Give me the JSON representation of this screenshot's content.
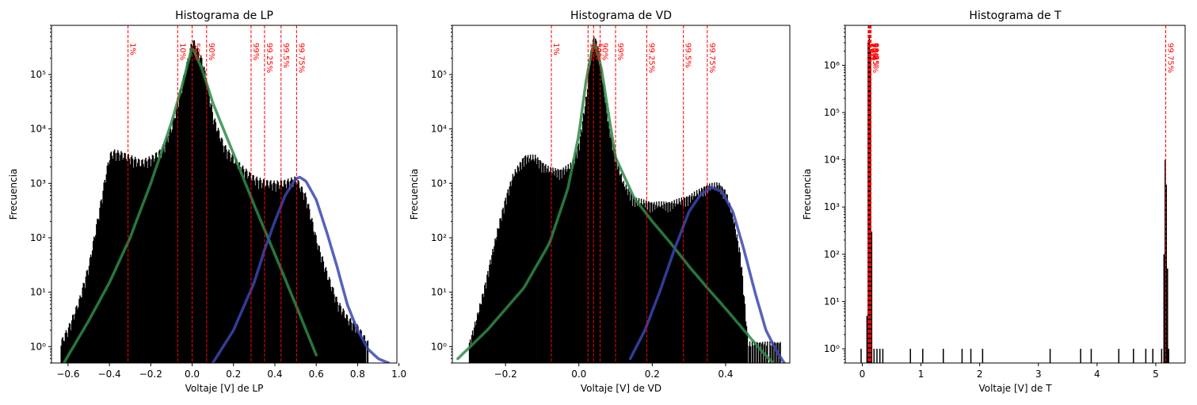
{
  "chart_data": [
    {
      "type": "histogram",
      "title": "Histograma de LP",
      "xlabel": "Voltaje [V] de LP",
      "ylabel": "Frecuencia",
      "yscale": "log",
      "xlim": [
        -0.68,
        0.99
      ],
      "ylim": [
        0.5,
        800000
      ],
      "xticks": [
        -0.6,
        -0.4,
        -0.2,
        0.0,
        0.2,
        0.4,
        0.6,
        0.8,
        1.0
      ],
      "xtick_labels": [
        "−0.6",
        "−0.4",
        "−0.2",
        "0.0",
        "0.2",
        "0.4",
        "0.6",
        "0.8",
        "1.0"
      ],
      "yticks": [
        1,
        10,
        100,
        1000,
        10000,
        100000
      ],
      "ytick_labels": [
        "10⁰",
        "10¹",
        "10²",
        "10³",
        "10⁴",
        "10⁵"
      ],
      "histogram": {
        "color": "#000000",
        "x": [
          -0.64,
          -0.6,
          -0.55,
          -0.5,
          -0.45,
          -0.42,
          -0.4,
          -0.38,
          -0.35,
          -0.3,
          -0.25,
          -0.2,
          -0.15,
          -0.1,
          -0.05,
          0.0,
          0.05,
          0.1,
          0.15,
          0.2,
          0.25,
          0.3,
          0.35,
          0.4,
          0.45,
          0.5,
          0.55,
          0.6,
          0.65,
          0.7,
          0.75,
          0.8,
          0.85
        ],
        "counts": [
          1,
          2,
          6,
          30,
          300,
          1300,
          3000,
          3400,
          3200,
          2700,
          2200,
          2600,
          3600,
          10000,
          60000,
          400000,
          150000,
          15000,
          4500,
          2500,
          1600,
          1100,
          950,
          900,
          950,
          1100,
          500,
          80,
          20,
          6,
          3,
          2,
          1
        ]
      },
      "series": [
        {
          "color": "#2e8b47",
          "x": [
            -0.62,
            -0.5,
            -0.4,
            -0.3,
            -0.2,
            -0.1,
            -0.05,
            0.0,
            0.05,
            0.1,
            0.2,
            0.3,
            0.4,
            0.5,
            0.6
          ],
          "y": [
            0.5,
            3,
            15,
            100,
            1000,
            13000,
            60000,
            320000,
            120000,
            30000,
            3500,
            400,
            50,
            6,
            0.7
          ]
        },
        {
          "color": "#3a46b0",
          "x": [
            0.1,
            0.2,
            0.3,
            0.35,
            0.4,
            0.45,
            0.5,
            0.52,
            0.55,
            0.6,
            0.65,
            0.7,
            0.75,
            0.8,
            0.85,
            0.9,
            0.95
          ],
          "y": [
            0.5,
            2,
            15,
            60,
            200,
            600,
            1200,
            1300,
            1100,
            500,
            130,
            30,
            6,
            2,
            0.9,
            0.6,
            0.5
          ]
        }
      ],
      "percentiles": [
        {
          "x": -0.31,
          "label": "1%"
        },
        {
          "x": -0.07,
          "label": "10%"
        },
        {
          "x": 0.0,
          "label": "50%"
        },
        {
          "x": 0.07,
          "label": "90%"
        },
        {
          "x": 0.285,
          "label": "99%"
        },
        {
          "x": 0.35,
          "label": "99.25%"
        },
        {
          "x": 0.43,
          "label": "99.5%"
        },
        {
          "x": 0.505,
          "label": "99.75%"
        }
      ]
    },
    {
      "type": "histogram",
      "title": "Histograma de VD",
      "xlabel": "Voltaje [V] de VD",
      "ylabel": "Frecuencia",
      "yscale": "log",
      "xlim": [
        -0.345,
        0.575
      ],
      "ylim": [
        0.5,
        800000
      ],
      "xticks": [
        -0.2,
        0.0,
        0.2,
        0.4
      ],
      "xtick_labels": [
        "−0.2",
        "0.0",
        "0.2",
        "0.4"
      ],
      "yticks": [
        1,
        10,
        100,
        1000,
        10000,
        100000
      ],
      "ytick_labels": [
        "10⁰",
        "10¹",
        "10²",
        "10³",
        "10⁴",
        "10⁵"
      ],
      "histogram": {
        "color": "#000000",
        "x": [
          -0.3,
          -0.28,
          -0.26,
          -0.24,
          -0.22,
          -0.2,
          -0.18,
          -0.15,
          -0.12,
          -0.1,
          -0.08,
          -0.05,
          -0.02,
          0.0,
          0.02,
          0.03,
          0.04,
          0.05,
          0.06,
          0.08,
          0.1,
          0.12,
          0.15,
          0.2,
          0.25,
          0.3,
          0.35,
          0.38,
          0.4,
          0.42,
          0.44,
          0.46,
          0.5,
          0.55
        ],
        "counts": [
          1,
          3,
          10,
          40,
          150,
          500,
          1300,
          2700,
          2700,
          2000,
          1600,
          1500,
          2000,
          5000,
          40000,
          200000,
          450000,
          300000,
          100000,
          10000,
          2500,
          900,
          450,
          370,
          380,
          500,
          800,
          850,
          600,
          200,
          40,
          1,
          1,
          1
        ]
      },
      "series": [
        {
          "color": "#2e8b47",
          "x": [
            -0.33,
            -0.25,
            -0.15,
            -0.08,
            -0.03,
            0.0,
            0.02,
            0.04,
            0.06,
            0.08,
            0.1,
            0.15,
            0.2,
            0.25,
            0.3,
            0.35,
            0.4,
            0.45,
            0.5,
            0.53
          ],
          "y": [
            0.6,
            2,
            12,
            80,
            800,
            8000,
            80000,
            400000,
            150000,
            20000,
            3000,
            550,
            200,
            80,
            30,
            12,
            5,
            2,
            0.8,
            0.5
          ]
        },
        {
          "color": "#3a46b0",
          "x": [
            0.14,
            0.18,
            0.22,
            0.26,
            0.3,
            0.33,
            0.36,
            0.39,
            0.42,
            0.45,
            0.48,
            0.51,
            0.54,
            0.56
          ],
          "y": [
            0.6,
            2,
            10,
            60,
            300,
            600,
            850,
            700,
            300,
            60,
            10,
            2,
            0.8,
            0.5
          ]
        }
      ],
      "percentiles": [
        {
          "x": -0.075,
          "label": "1%"
        },
        {
          "x": 0.025,
          "label": "10%"
        },
        {
          "x": 0.04,
          "label": "50%"
        },
        {
          "x": 0.058,
          "label": "90%"
        },
        {
          "x": 0.1,
          "label": "99%"
        },
        {
          "x": 0.185,
          "label": "99.25%"
        },
        {
          "x": 0.285,
          "label": "99.5%"
        },
        {
          "x": 0.35,
          "label": "99.75%"
        }
      ]
    },
    {
      "type": "histogram",
      "title": "Histograma de T",
      "xlabel": "Voltaje [V] de T",
      "ylabel": "Frecuencia",
      "yscale": "log",
      "xlim": [
        -0.29,
        5.5
      ],
      "ylim": [
        0.5,
        7000000
      ],
      "xticks": [
        0,
        1,
        2,
        3,
        4,
        5
      ],
      "xtick_labels": [
        "0",
        "1",
        "2",
        "3",
        "4",
        "5"
      ],
      "yticks": [
        1,
        10,
        100,
        1000,
        10000,
        100000,
        1000000
      ],
      "ytick_labels": [
        "10⁰",
        "10¹",
        "10²",
        "10³",
        "10⁴",
        "10⁵",
        "10⁶"
      ],
      "histogram": {
        "color": "#000000",
        "x": [
          -0.02,
          0.08,
          0.1,
          0.12,
          0.14,
          0.16,
          0.2,
          0.25,
          0.3,
          0.35,
          0.82,
          1.03,
          1.38,
          1.7,
          1.85,
          2.05,
          3.2,
          3.72,
          3.9,
          4.37,
          4.62,
          4.83,
          4.95,
          5.1,
          5.14,
          5.16,
          5.18,
          5.2,
          5.22
        ],
        "counts": [
          1,
          5,
          3000000,
          4000000,
          2000000,
          300,
          1,
          1,
          1,
          1,
          1,
          1,
          1,
          1,
          1,
          1,
          1,
          1,
          1,
          1,
          1,
          1,
          1,
          1,
          100,
          10000,
          3000,
          50,
          1
        ]
      },
      "series": [],
      "percentiles": [
        {
          "x": 0.1,
          "label": "1%"
        },
        {
          "x": 0.11,
          "label": "10%"
        },
        {
          "x": 0.12,
          "label": "50%"
        },
        {
          "x": 0.13,
          "label": "90%"
        },
        {
          "x": 0.14,
          "label": "99%"
        },
        {
          "x": 0.145,
          "label": "99.25%"
        },
        {
          "x": 0.15,
          "label": "99.5%"
        },
        {
          "x": 5.17,
          "label": "99.75%"
        }
      ]
    }
  ]
}
